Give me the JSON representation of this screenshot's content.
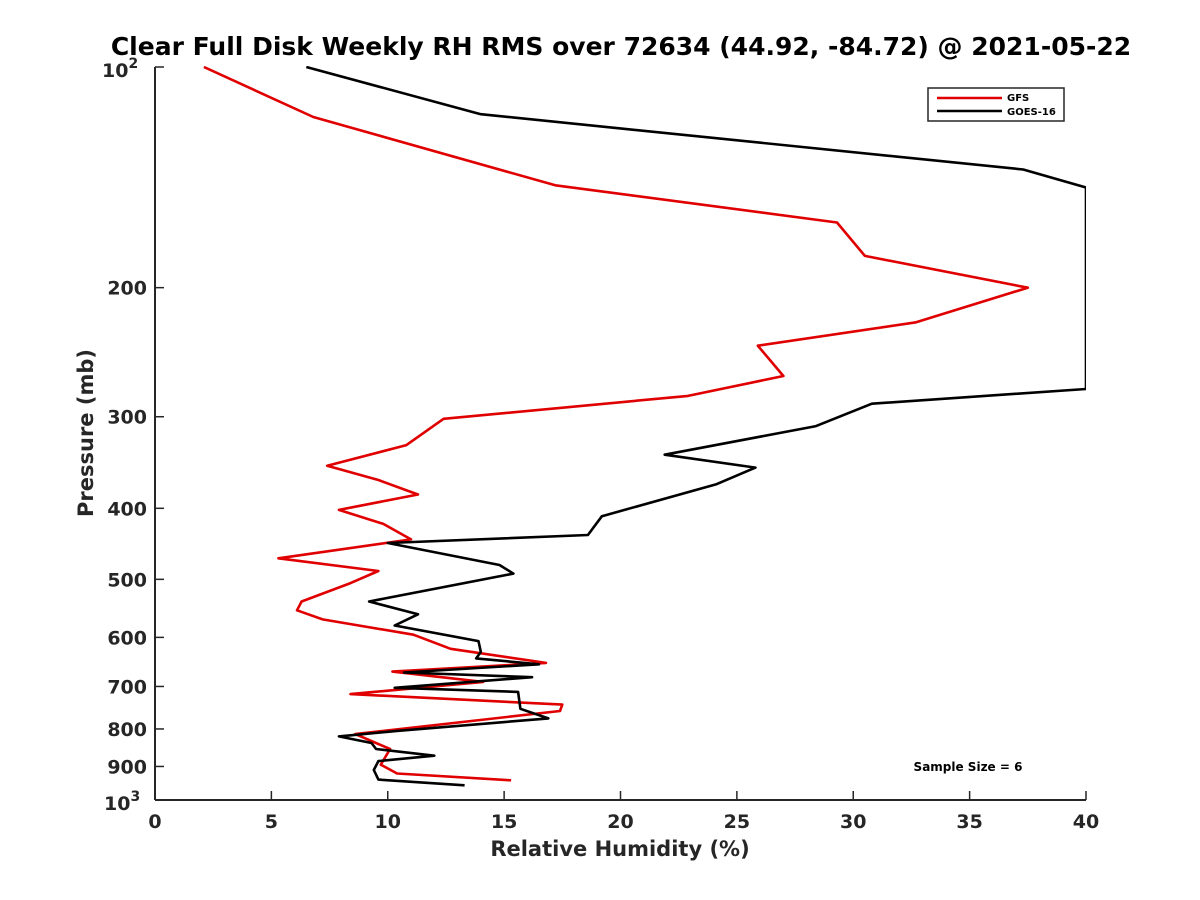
{
  "chart_data": {
    "type": "line",
    "title": "Clear Full Disk Weekly RH RMS over 72634 (44.92, -84.72) @ 2021-05-22",
    "xlabel": "Relative Humidity (%)",
    "ylabel": "Pressure (mb)",
    "xlim": [
      0,
      40
    ],
    "ylim": [
      100,
      1000
    ],
    "yscale": "log",
    "y_reversed": true,
    "grid": false,
    "legend_position": "top-right",
    "xticks": [
      0,
      5,
      10,
      15,
      20,
      25,
      30,
      35,
      40
    ],
    "xtick_labels": [
      "0",
      "5",
      "10",
      "15",
      "20",
      "25",
      "30",
      "35",
      "40"
    ],
    "yticks": [
      200,
      300,
      400,
      500,
      600,
      700,
      800,
      900
    ],
    "ytick_labels": [
      "200",
      "300",
      "400",
      "500",
      "600",
      "700",
      "800",
      "900"
    ],
    "ylim_labels": {
      "top_base": "10",
      "top_exp": "2",
      "bottom_base": "10",
      "bottom_exp": "3"
    },
    "annotation": "Sample Size = 6",
    "series": [
      {
        "name": "GFS",
        "color": "#e00000",
        "x": [
          2.1,
          6.8,
          17.2,
          29.3,
          30.5,
          37.5,
          32.7,
          25.9,
          27.0,
          22.9,
          12.4,
          10.8,
          7.4,
          9.6,
          11.3,
          7.9,
          9.8,
          11.0,
          5.3,
          9.6,
          8.4,
          6.3,
          6.1,
          7.2,
          11.1,
          12.7,
          16.8,
          10.2,
          14.1,
          8.4,
          17.5,
          17.4,
          8.6,
          10.1,
          9.7,
          10.4,
          15.3
        ],
        "y": [
          100,
          117,
          145,
          163,
          181,
          200,
          223,
          240,
          264,
          281,
          302,
          328,
          350,
          366,
          383,
          402,
          420,
          441,
          468,
          487,
          506,
          536,
          551,
          567,
          595,
          622,
          650,
          668,
          690,
          717,
          741,
          756,
          813,
          852,
          895,
          920,
          940
        ]
      },
      {
        "name": "GOES-16",
        "color": "#000000",
        "x": [
          6.5,
          14.0,
          37.3,
          40.0,
          40.0,
          30.8,
          28.4,
          21.9,
          25.8,
          24.1,
          19.2,
          18.6,
          10.0,
          14.8,
          15.4,
          9.2,
          11.3,
          10.3,
          13.9,
          14.0,
          13.8,
          16.5,
          10.7,
          16.2,
          10.3,
          15.6,
          15.7,
          16.9,
          10.4,
          7.9,
          9.3,
          9.5,
          12.0,
          9.6,
          9.4,
          9.6,
          13.3
        ],
        "y": [
          100,
          116,
          138,
          146,
          275,
          288,
          309,
          338,
          352,
          371,
          410,
          435,
          446,
          478,
          491,
          536,
          558,
          578,
          607,
          628,
          641,
          653,
          670,
          680,
          703,
          712,
          751,
          774,
          805,
          819,
          836,
          852,
          870,
          885,
          910,
          938,
          955
        ]
      }
    ]
  }
}
